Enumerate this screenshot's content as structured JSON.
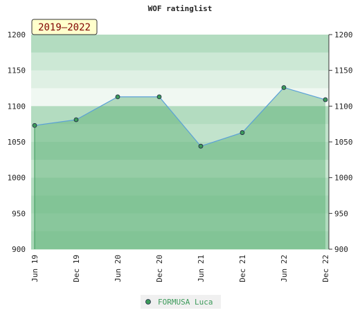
{
  "chart_data": {
    "type": "line",
    "title": "WOF ratinglist",
    "annotation": "2019–2022",
    "categories": [
      "Jun 19",
      "Dec 19",
      "Jun 20",
      "Dec 20",
      "Jun 21",
      "Dec 21",
      "Jun 22",
      "Dec 22"
    ],
    "series": [
      {
        "name": "FORMUSA Luca",
        "color": "#5aa0d8",
        "marker_color": "#3c9a5a",
        "values": [
          1073,
          1081,
          1113,
          1113,
          1044,
          1063,
          1126,
          1109
        ]
      }
    ],
    "ylim": [
      900,
      1200
    ],
    "yticks": [
      900,
      950,
      1000,
      1050,
      1100,
      1150,
      1200
    ]
  }
}
